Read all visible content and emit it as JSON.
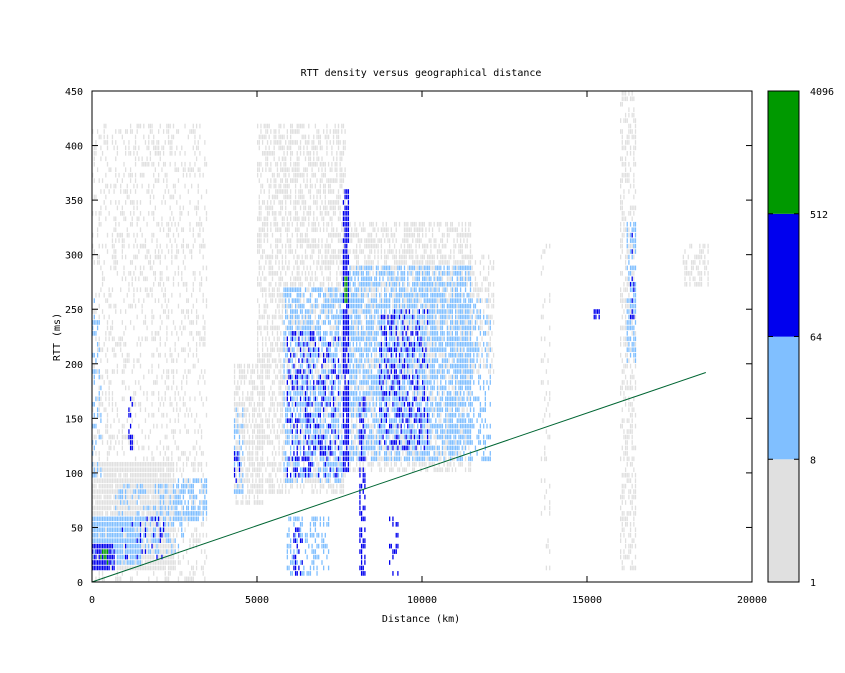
{
  "chart_data": {
    "type": "heatmap",
    "title": "RTT density versus geographical distance",
    "xlabel": "Distance (km)",
    "ylabel": "RTT (ms)",
    "xlim": [
      0,
      20000
    ],
    "ylim": [
      0,
      450
    ],
    "x_ticks": [
      0,
      5000,
      10000,
      15000,
      20000
    ],
    "y_ticks": [
      0,
      50,
      100,
      150,
      200,
      250,
      300,
      350,
      400,
      450
    ],
    "colorbar": {
      "scale": "log",
      "range": [
        1,
        4096
      ],
      "tick_labels": [
        "1",
        "8",
        "64",
        "512",
        "4096"
      ],
      "bands": [
        {
          "from": 1,
          "to": 8,
          "color": "#e0e0e0"
        },
        {
          "from": 8,
          "to": 64,
          "color": "#80bfff"
        },
        {
          "from": 64,
          "to": 512,
          "color": "#0000ee"
        },
        {
          "from": 512,
          "to": 4096,
          "color": "#009900"
        }
      ]
    },
    "reference_line": {
      "color": "#006633",
      "points": [
        [
          0,
          0
        ],
        [
          18600,
          192
        ]
      ]
    },
    "grid": false,
    "legend": "colorbar-right",
    "density_regions": [
      {
        "x": [
          0,
          3500
        ],
        "y": [
          0,
          420
        ],
        "level": 1,
        "density": 0.25
      },
      {
        "x": [
          0,
          2500
        ],
        "y": [
          10,
          110
        ],
        "level": 1,
        "density": 0.9
      },
      {
        "x": [
          0,
          1500
        ],
        "y": [
          15,
          60
        ],
        "level": 2,
        "density": 0.9
      },
      {
        "x": [
          0,
          700
        ],
        "y": [
          10,
          35
        ],
        "level": 3,
        "density": 0.85
      },
      {
        "x": [
          200,
          500
        ],
        "y": [
          15,
          28
        ],
        "level": 4,
        "density": 0.5
      },
      {
        "x": [
          0,
          300
        ],
        "y": [
          90,
          260
        ],
        "level": 2,
        "density": 0.35
      },
      {
        "x": [
          700,
          2800
        ],
        "y": [
          25,
          90
        ],
        "level": 2,
        "density": 0.35
      },
      {
        "x": [
          800,
          2200
        ],
        "y": [
          20,
          60
        ],
        "level": 3,
        "density": 0.15
      },
      {
        "x": [
          1100,
          1250
        ],
        "y": [
          120,
          170
        ],
        "level": 3,
        "density": 0.6
      },
      {
        "x": [
          2500,
          3500
        ],
        "y": [
          55,
          95
        ],
        "level": 2,
        "density": 0.5
      },
      {
        "x": [
          4300,
          5200
        ],
        "y": [
          70,
          200
        ],
        "level": 1,
        "density": 0.6
      },
      {
        "x": [
          4300,
          4600
        ],
        "y": [
          80,
          160
        ],
        "level": 2,
        "density": 0.5
      },
      {
        "x": [
          4300,
          4500
        ],
        "y": [
          90,
          120
        ],
        "level": 3,
        "density": 0.4
      },
      {
        "x": [
          5000,
          7700
        ],
        "y": [
          80,
          420
        ],
        "level": 1,
        "density": 0.5
      },
      {
        "x": [
          5800,
          7600
        ],
        "y": [
          90,
          270
        ],
        "level": 2,
        "density": 0.55
      },
      {
        "x": [
          5900,
          7500
        ],
        "y": [
          95,
          230
        ],
        "level": 3,
        "density": 0.25
      },
      {
        "x": [
          5900,
          7200
        ],
        "y": [
          5,
          60
        ],
        "level": 2,
        "density": 0.4
      },
      {
        "x": [
          6100,
          6400
        ],
        "y": [
          8,
          50
        ],
        "level": 3,
        "density": 0.3
      },
      {
        "x": [
          7600,
          7800
        ],
        "y": [
          100,
          360
        ],
        "level": 3,
        "density": 0.8
      },
      {
        "x": [
          7660,
          7740
        ],
        "y": [
          255,
          280
        ],
        "level": 4,
        "density": 0.9
      },
      {
        "x": [
          7700,
          11500
        ],
        "y": [
          100,
          330
        ],
        "level": 1,
        "density": 0.55
      },
      {
        "x": [
          7800,
          11500
        ],
        "y": [
          110,
          290
        ],
        "level": 2,
        "density": 0.6
      },
      {
        "x": [
          8700,
          10200
        ],
        "y": [
          120,
          250
        ],
        "level": 3,
        "density": 0.3
      },
      {
        "x": [
          8100,
          8300
        ],
        "y": [
          5,
          170
        ],
        "level": 3,
        "density": 0.5
      },
      {
        "x": [
          9000,
          9300
        ],
        "y": [
          5,
          60
        ],
        "level": 3,
        "density": 0.35
      },
      {
        "x": [
          9300,
          12200
        ],
        "y": [
          190,
          300
        ],
        "level": 1,
        "density": 0.4
      },
      {
        "x": [
          11000,
          12100
        ],
        "y": [
          110,
          260
        ],
        "level": 2,
        "density": 0.3
      },
      {
        "x": [
          13600,
          13900
        ],
        "y": [
          10,
          310
        ],
        "level": 1,
        "density": 0.15
      },
      {
        "x": [
          15200,
          15400
        ],
        "y": [
          240,
          250
        ],
        "level": 3,
        "density": 0.9
      },
      {
        "x": [
          16000,
          16500
        ],
        "y": [
          10,
          450
        ],
        "level": 1,
        "density": 0.45
      },
      {
        "x": [
          16200,
          16500
        ],
        "y": [
          200,
          330
        ],
        "level": 2,
        "density": 0.5
      },
      {
        "x": [
          16300,
          16450
        ],
        "y": [
          240,
          320
        ],
        "level": 3,
        "density": 0.3
      },
      {
        "x": [
          17900,
          18700
        ],
        "y": [
          270,
          310
        ],
        "level": 1,
        "density": 0.5
      }
    ]
  }
}
